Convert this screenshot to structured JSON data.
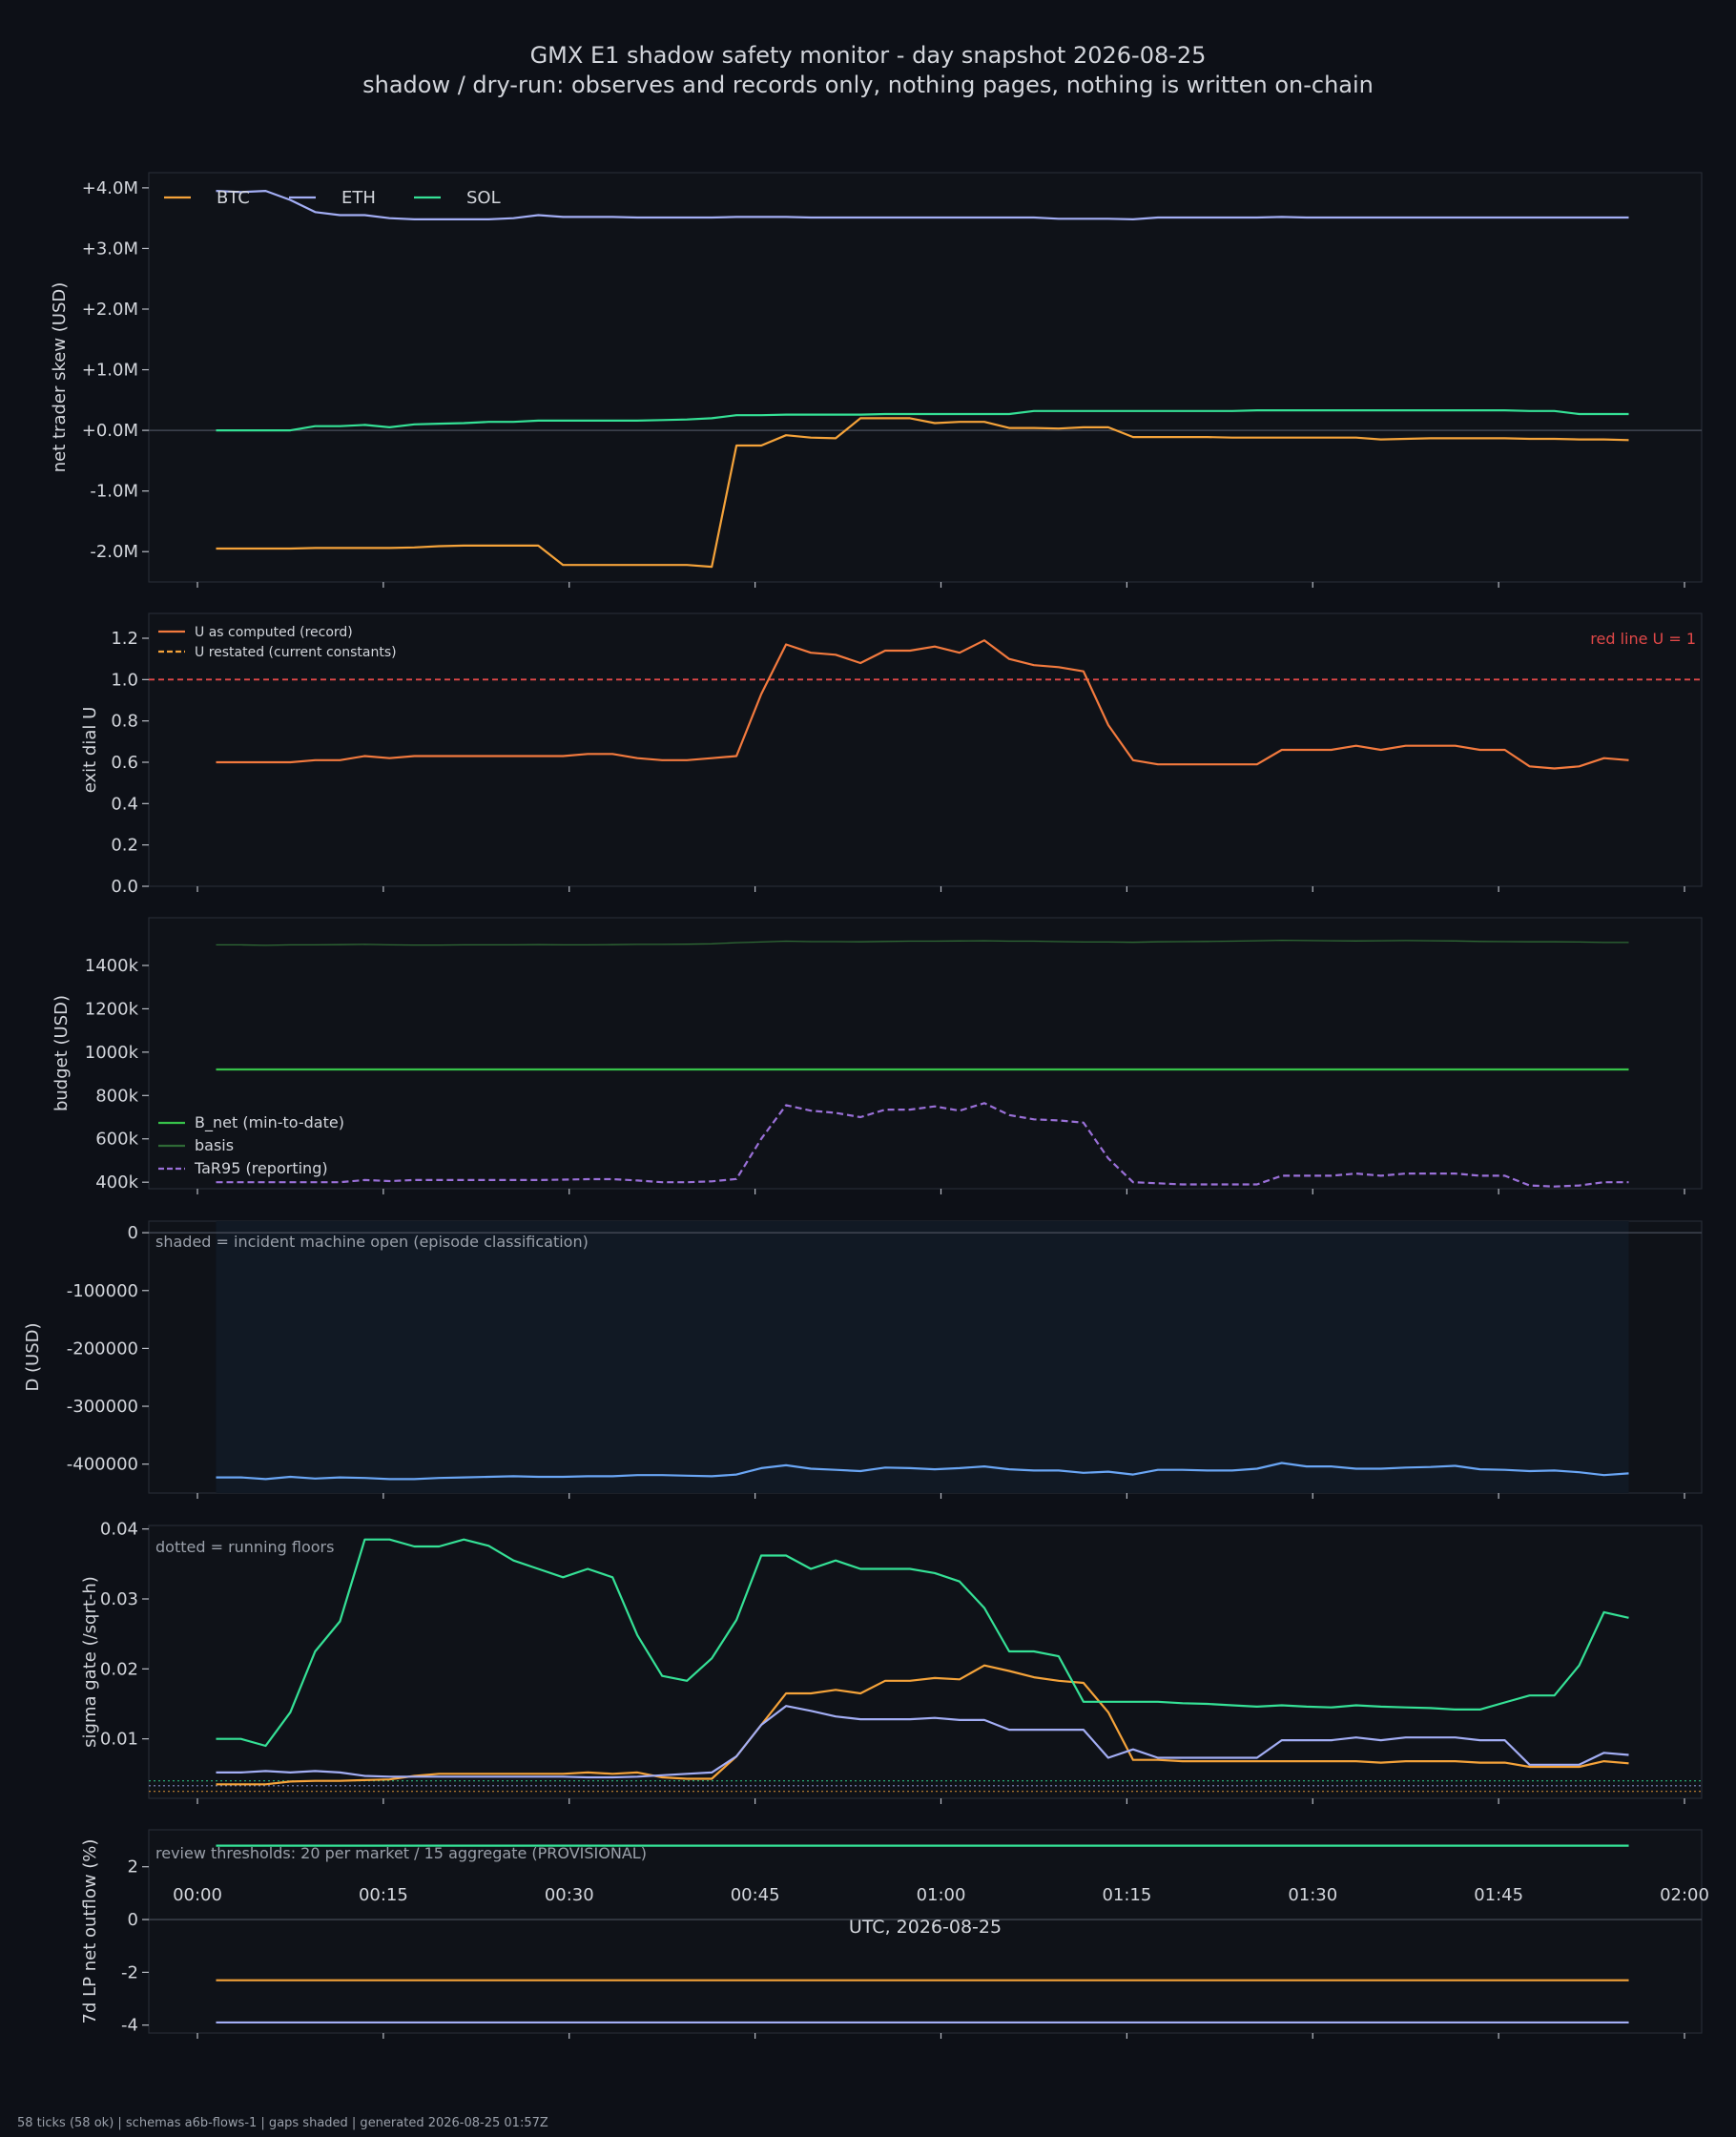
{
  "title": "GMX E1 shadow safety monitor - day snapshot 2026-08-25",
  "subtitle": "shadow / dry-run: observes and records only, nothing pages, nothing is written on-chain",
  "footer": "58 ticks (58 ok) | schemas a6b-flows-1 | gaps shaded | generated 2026-08-25 01:57Z",
  "xlabel": "UTC, 2026-08-25",
  "xticks": [
    "00:00",
    "00:15",
    "00:30",
    "00:45",
    "01:00",
    "01:15",
    "01:30",
    "01:45",
    "02:00"
  ],
  "colors": {
    "background": "#0d1017",
    "panel": "#0f1218",
    "btc": "#f5a33a",
    "eth": "#a3aef5",
    "sol": "#35e196",
    "u_line": "#f37a3e",
    "red_line": "#e04848",
    "b_net": "#37c24a",
    "basis": "#2f6a35",
    "tar95": "#9a70d8",
    "d_line": "#6aa6f5"
  },
  "chart_data": [
    {
      "type": "line",
      "ylabel": "net trader skew (USD)",
      "yticks": [
        "+4.0M",
        "+3.0M",
        "+2.0M",
        "+1.0M",
        "+0.0M",
        "-1.0M",
        "-2.0M"
      ],
      "ylim": [
        -2.5,
        4.25
      ],
      "unit": "USD millions",
      "legend": "top-left",
      "x_start_minute": 1.5,
      "x_step_minute": 2,
      "series": [
        {
          "name": "BTC",
          "color_key": "btc",
          "values": [
            -1.95,
            -1.95,
            -1.95,
            -1.95,
            -1.94,
            -1.94,
            -1.94,
            -1.94,
            -1.93,
            -1.91,
            -1.9,
            -1.9,
            -1.9,
            -1.9,
            -2.22,
            -2.22,
            -2.22,
            -2.22,
            -2.22,
            -2.22,
            -2.25,
            -0.25,
            -0.25,
            -0.08,
            -0.12,
            -0.13,
            0.2,
            0.2,
            0.2,
            0.12,
            0.14,
            0.14,
            0.04,
            0.04,
            0.03,
            0.05,
            0.05,
            -0.11,
            -0.11,
            -0.11,
            -0.11,
            -0.12,
            -0.12,
            -0.12,
            -0.12,
            -0.12,
            -0.12,
            -0.15,
            -0.14,
            -0.13,
            -0.13,
            -0.13,
            -0.13,
            -0.14,
            -0.14,
            -0.15,
            -0.15,
            -0.16
          ]
        },
        {
          "name": "ETH",
          "color_key": "eth",
          "values": [
            3.95,
            3.93,
            3.95,
            3.8,
            3.6,
            3.55,
            3.55,
            3.5,
            3.48,
            3.48,
            3.48,
            3.48,
            3.5,
            3.55,
            3.52,
            3.52,
            3.52,
            3.51,
            3.51,
            3.51,
            3.51,
            3.52,
            3.52,
            3.52,
            3.51,
            3.51,
            3.51,
            3.51,
            3.51,
            3.51,
            3.51,
            3.51,
            3.51,
            3.51,
            3.49,
            3.49,
            3.49,
            3.48,
            3.51,
            3.51,
            3.51,
            3.51,
            3.51,
            3.52,
            3.51,
            3.51,
            3.51,
            3.51,
            3.51,
            3.51,
            3.51,
            3.51,
            3.51,
            3.51,
            3.51,
            3.51,
            3.51,
            3.51
          ]
        },
        {
          "name": "SOL",
          "color_key": "sol",
          "values": [
            0.0,
            0.0,
            0.0,
            0.0,
            0.07,
            0.07,
            0.09,
            0.05,
            0.1,
            0.11,
            0.12,
            0.14,
            0.14,
            0.16,
            0.16,
            0.16,
            0.16,
            0.16,
            0.17,
            0.18,
            0.2,
            0.25,
            0.25,
            0.26,
            0.26,
            0.26,
            0.26,
            0.27,
            0.27,
            0.27,
            0.27,
            0.27,
            0.27,
            0.32,
            0.32,
            0.32,
            0.32,
            0.32,
            0.32,
            0.32,
            0.32,
            0.32,
            0.33,
            0.33,
            0.33,
            0.33,
            0.33,
            0.33,
            0.33,
            0.33,
            0.33,
            0.33,
            0.33,
            0.32,
            0.32,
            0.27,
            0.27,
            0.27
          ]
        }
      ]
    },
    {
      "type": "line",
      "ylabel": "exit dial U",
      "yticks": [
        "1.2",
        "1.0",
        "0.8",
        "0.6",
        "0.4",
        "0.2",
        "0.0"
      ],
      "ylim": [
        0.0,
        1.32
      ],
      "legend": "top-left",
      "annotation": "red line U = 1",
      "reference_line": 1.0,
      "x_start_minute": 1.5,
      "x_step_minute": 2,
      "series": [
        {
          "name": "U as computed (record)",
          "color_key": "u_line",
          "values": [
            0.6,
            0.6,
            0.6,
            0.6,
            0.61,
            0.61,
            0.63,
            0.62,
            0.63,
            0.63,
            0.63,
            0.63,
            0.63,
            0.63,
            0.63,
            0.64,
            0.64,
            0.62,
            0.61,
            0.61,
            0.62,
            0.63,
            0.93,
            1.17,
            1.13,
            1.12,
            1.08,
            1.14,
            1.14,
            1.16,
            1.13,
            1.19,
            1.1,
            1.07,
            1.06,
            1.04,
            0.78,
            0.61,
            0.59,
            0.59,
            0.59,
            0.59,
            0.59,
            0.66,
            0.66,
            0.66,
            0.68,
            0.66,
            0.68,
            0.68,
            0.68,
            0.66,
            0.66,
            0.58,
            0.57,
            0.58,
            0.62,
            0.61
          ]
        },
        {
          "name": "U restated (current constants)",
          "color_key": "btc",
          "dashed": true,
          "values": []
        }
      ]
    },
    {
      "type": "line",
      "ylabel": "budget (USD)",
      "yticks": [
        "1400k",
        "1200k",
        "1000k",
        "800k",
        "600k",
        "400k"
      ],
      "ylim": [
        370,
        1620
      ],
      "unit": "USD thousands",
      "legend": "bottom-left",
      "x_start_minute": 1.5,
      "x_step_minute": 2,
      "series": [
        {
          "name": "B_net (min-to-date)",
          "color_key": "b_net",
          "values": [
            920,
            920,
            920,
            920,
            920,
            920,
            920,
            920,
            920,
            920,
            920,
            920,
            920,
            920,
            920,
            920,
            920,
            920,
            920,
            920,
            920,
            920,
            920,
            920,
            920,
            920,
            920,
            920,
            920,
            920,
            920,
            920,
            920,
            920,
            920,
            920,
            920,
            920,
            920,
            920,
            920,
            920,
            920,
            920,
            920,
            920,
            920,
            920,
            920,
            920,
            920,
            920,
            920,
            920,
            920,
            920,
            920,
            920
          ]
        },
        {
          "name": "basis",
          "color_key": "basis",
          "values": [
            1495,
            1495,
            1493,
            1495,
            1495,
            1496,
            1497,
            1495,
            1494,
            1494,
            1495,
            1495,
            1495,
            1496,
            1495,
            1495,
            1496,
            1497,
            1497,
            1498,
            1500,
            1505,
            1508,
            1512,
            1510,
            1510,
            1509,
            1511,
            1512,
            1512,
            1513,
            1514,
            1512,
            1512,
            1510,
            1508,
            1508,
            1507,
            1509,
            1510,
            1511,
            1512,
            1514,
            1516,
            1515,
            1514,
            1513,
            1514,
            1515,
            1514,
            1513,
            1511,
            1510,
            1509,
            1509,
            1508,
            1506,
            1506
          ]
        },
        {
          "name": "TaR95 (reporting)",
          "color_key": "tar95",
          "dashed": true,
          "values": [
            400,
            400,
            400,
            400,
            400,
            400,
            410,
            405,
            410,
            410,
            410,
            410,
            410,
            410,
            412,
            414,
            414,
            408,
            400,
            400,
            404,
            415,
            600,
            755,
            730,
            720,
            700,
            735,
            735,
            750,
            730,
            765,
            710,
            690,
            685,
            675,
            510,
            400,
            395,
            390,
            390,
            390,
            390,
            430,
            430,
            430,
            440,
            430,
            440,
            440,
            440,
            430,
            430,
            385,
            380,
            385,
            400,
            400
          ]
        }
      ]
    },
    {
      "type": "line",
      "ylabel": "D (USD)",
      "yticks": [
        "0",
        "-100000",
        "-200000",
        "-300000",
        "-400000"
      ],
      "ylim": [
        -450000,
        20000
      ],
      "legend": "none",
      "annotation": "shaded = incident machine open (episode classification)",
      "shaded_range_minutes": [
        1.5,
        115.5
      ],
      "x_start_minute": 1.5,
      "x_step_minute": 2,
      "series": [
        {
          "name": "D",
          "color_key": "d_line",
          "values": [
            -423000,
            -423000,
            -426000,
            -422000,
            -425000,
            -423000,
            -424000,
            -426000,
            -426000,
            -424000,
            -423000,
            -422000,
            -421000,
            -422000,
            -422000,
            -421000,
            -421000,
            -419000,
            -419000,
            -420000,
            -421000,
            -418000,
            -407000,
            -402000,
            -408000,
            -410000,
            -412000,
            -406000,
            -407000,
            -409000,
            -407000,
            -404000,
            -409000,
            -411000,
            -411000,
            -415000,
            -413000,
            -418000,
            -410000,
            -410000,
            -411000,
            -411000,
            -408000,
            -398000,
            -404000,
            -404000,
            -408000,
            -408000,
            -406000,
            -405000,
            -403000,
            -409000,
            -410000,
            -412000,
            -411000,
            -414000,
            -419000,
            -416000
          ]
        }
      ]
    },
    {
      "type": "line",
      "ylabel": "sigma gate (/sqrt-h)",
      "yticks": [
        "0.04",
        "0.03",
        "0.02",
        "0.01"
      ],
      "ylim": [
        0.0015,
        0.0405
      ],
      "legend": "none",
      "annotation": "dotted = running floors",
      "floors": {
        "BTC": 0.0025,
        "ETH": 0.0033,
        "SOL": 0.004
      },
      "x_start_minute": 1.5,
      "x_step_minute": 2,
      "series": [
        {
          "name": "BTC",
          "color_key": "btc",
          "values": [
            0.0035,
            0.0035,
            0.0035,
            0.0039,
            0.004,
            0.004,
            0.0041,
            0.0042,
            0.0047,
            0.005,
            0.005,
            0.005,
            0.005,
            0.005,
            0.005,
            0.0052,
            0.005,
            0.0052,
            0.0045,
            0.0043,
            0.0043,
            0.0075,
            0.012,
            0.0165,
            0.0165,
            0.017,
            0.0165,
            0.0183,
            0.0183,
            0.0187,
            0.0185,
            0.0205,
            0.0197,
            0.0188,
            0.0183,
            0.018,
            0.0138,
            0.007,
            0.007,
            0.0068,
            0.0068,
            0.0068,
            0.0068,
            0.0068,
            0.0068,
            0.0068,
            0.0068,
            0.0066,
            0.0068,
            0.0068,
            0.0068,
            0.0066,
            0.0066,
            0.006,
            0.006,
            0.006,
            0.0068,
            0.0065
          ]
        },
        {
          "name": "ETH",
          "color_key": "eth",
          "values": [
            0.0052,
            0.0052,
            0.0054,
            0.0052,
            0.0054,
            0.0052,
            0.0047,
            0.0046,
            0.0046,
            0.0046,
            0.0046,
            0.0046,
            0.0046,
            0.0046,
            0.0046,
            0.0045,
            0.0045,
            0.0046,
            0.0048,
            0.005,
            0.0052,
            0.0075,
            0.012,
            0.0147,
            0.014,
            0.0132,
            0.0128,
            0.0128,
            0.0128,
            0.013,
            0.0127,
            0.0127,
            0.0113,
            0.0113,
            0.0113,
            0.0113,
            0.0073,
            0.0085,
            0.0073,
            0.0073,
            0.0073,
            0.0073,
            0.0073,
            0.0098,
            0.0098,
            0.0098,
            0.0102,
            0.0098,
            0.0102,
            0.0102,
            0.0102,
            0.0098,
            0.0098,
            0.0063,
            0.0063,
            0.0063,
            0.008,
            0.0077
          ]
        },
        {
          "name": "SOL",
          "color_key": "sol",
          "values": [
            0.01,
            0.01,
            0.009,
            0.0138,
            0.0225,
            0.0268,
            0.0385,
            0.0385,
            0.0375,
            0.0375,
            0.0385,
            0.0376,
            0.0355,
            0.0343,
            0.0331,
            0.0343,
            0.0331,
            0.0248,
            0.019,
            0.0183,
            0.0215,
            0.027,
            0.0362,
            0.0362,
            0.0343,
            0.0355,
            0.0343,
            0.0343,
            0.0343,
            0.0337,
            0.0325,
            0.0287,
            0.0225,
            0.0225,
            0.0218,
            0.0153,
            0.0153,
            0.0153,
            0.0153,
            0.0151,
            0.015,
            0.0148,
            0.0146,
            0.0148,
            0.0146,
            0.0145,
            0.0148,
            0.0146,
            0.0145,
            0.0144,
            0.0142,
            0.0142,
            0.0152,
            0.0162,
            0.0162,
            0.0205,
            0.0281,
            0.0273
          ]
        }
      ]
    },
    {
      "type": "line",
      "ylabel": "7d LP net outflow (%)",
      "yticks": [
        "2",
        "0",
        "-2",
        "-4"
      ],
      "ylim": [
        -4.3,
        3.4
      ],
      "legend": "none",
      "annotation": "review thresholds: 20 per market / 15 aggregate (PROVISIONAL)",
      "x_start_minute": 1.5,
      "x_step_minute": 2,
      "series": [
        {
          "name": "SOL",
          "color_key": "sol",
          "constant": 2.8
        },
        {
          "name": "BTC",
          "color_key": "btc",
          "constant": -2.3
        },
        {
          "name": "ETH",
          "color_key": "eth",
          "constant": -3.9
        }
      ]
    }
  ]
}
